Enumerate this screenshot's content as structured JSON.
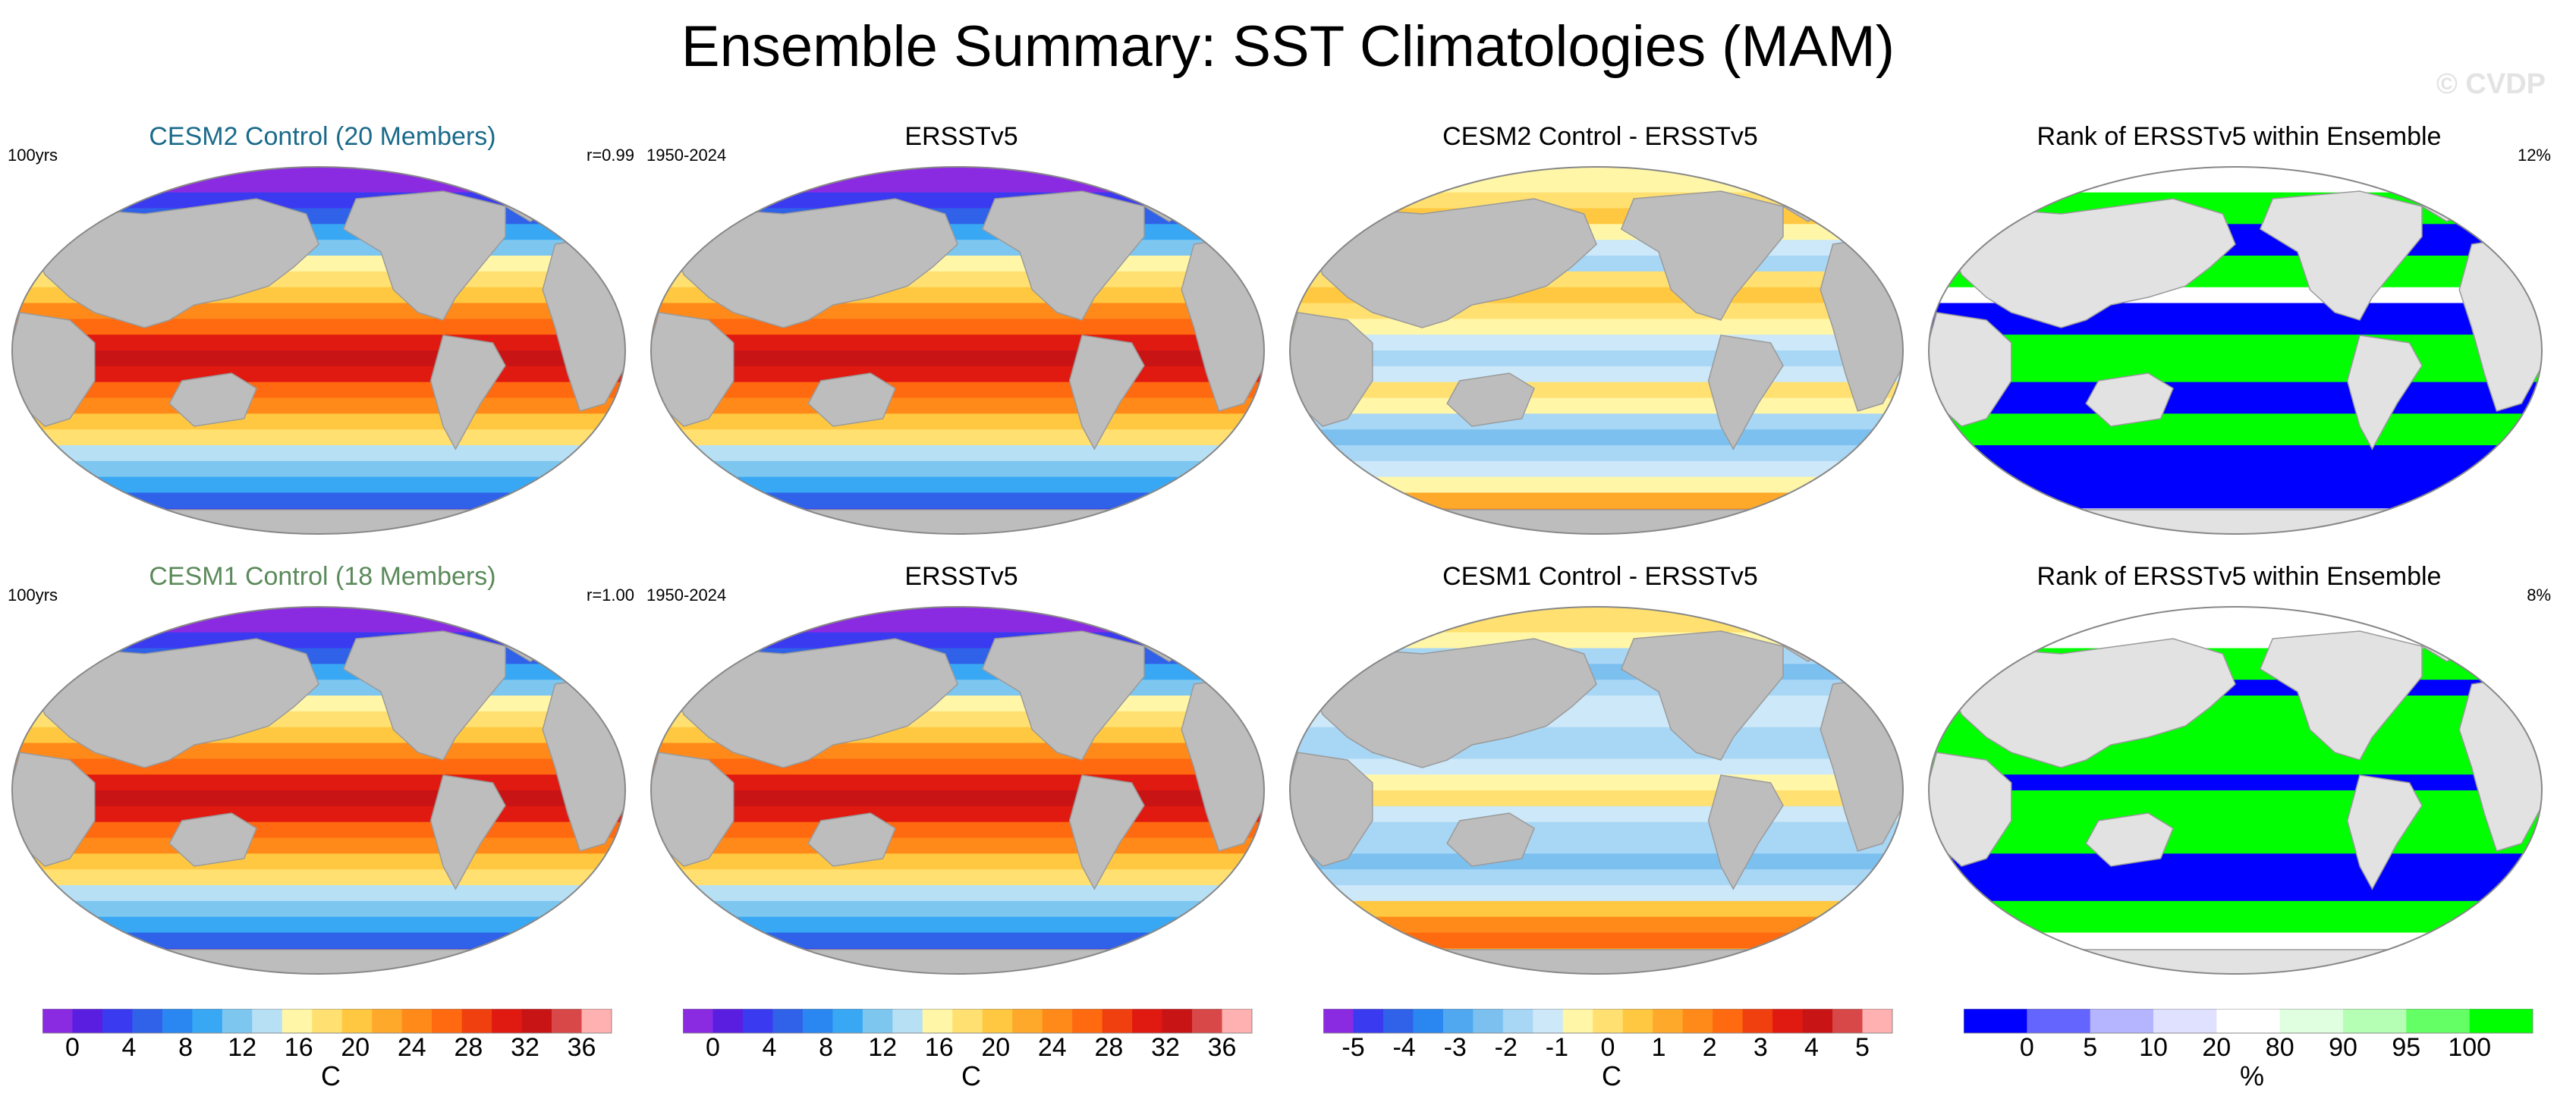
{
  "title": "Ensemble Summary: SST Climatologies (MAM)",
  "watermark": "© CVDP",
  "colors": {
    "land": "#bdbdbd",
    "land_rank": "#e2e2e2",
    "ocean_outline": "#888888",
    "title_cesm2": "#1a6a8a",
    "title_cesm1": "#5b8a5b"
  },
  "rows": [
    {
      "panels": [
        {
          "title": "CESM2 Control (20 Members)",
          "title_style": "cesm2",
          "left": "100yrs",
          "right": "r=0.99",
          "kind": "climo"
        },
        {
          "title": "ERSSTv5",
          "title_style": "plain",
          "left": "1950-2024",
          "right": "",
          "kind": "climo"
        },
        {
          "title": "CESM2 Control - ERSSTv5",
          "title_style": "plain",
          "left": "",
          "right": "",
          "kind": "diff2"
        },
        {
          "title": "Rank of ERSSTv5 within Ensemble",
          "title_style": "plain",
          "left": "",
          "right": "12%",
          "kind": "rank2"
        }
      ]
    },
    {
      "panels": [
        {
          "title": "CESM1 Control (18 Members)",
          "title_style": "cesm1",
          "left": "100yrs",
          "right": "r=1.00",
          "kind": "climo"
        },
        {
          "title": "ERSSTv5",
          "title_style": "plain",
          "left": "1950-2024",
          "right": "",
          "kind": "climo"
        },
        {
          "title": "CESM1 Control - ERSSTv5",
          "title_style": "plain",
          "left": "",
          "right": "",
          "kind": "diff1"
        },
        {
          "title": "Rank of ERSSTv5 within Ensemble",
          "title_style": "plain",
          "left": "",
          "right": "8%",
          "kind": "rank1"
        }
      ]
    }
  ],
  "colorbars": [
    {
      "unit": "C",
      "labels": [
        "0",
        "4",
        "8",
        "12",
        "16",
        "20",
        "24",
        "28",
        "32",
        "36"
      ],
      "colors": [
        "#8a2be2",
        "#5a1ee0",
        "#3a3af0",
        "#2f62e8",
        "#2a86f0",
        "#38a8f5",
        "#7cc6f0",
        "#b8e0f5",
        "#fff6a8",
        "#ffe070",
        "#ffc840",
        "#ffa92a",
        "#ff8a1a",
        "#ff6a10",
        "#f04010",
        "#e01a10",
        "#c81414",
        "#d84848",
        "#ffb0b0"
      ]
    },
    {
      "unit": "C",
      "labels": [
        "0",
        "4",
        "8",
        "12",
        "16",
        "20",
        "24",
        "28",
        "32",
        "36"
      ],
      "colors": [
        "#8a2be2",
        "#5a1ee0",
        "#3a3af0",
        "#2f62e8",
        "#2a86f0",
        "#38a8f5",
        "#7cc6f0",
        "#b8e0f5",
        "#fff6a8",
        "#ffe070",
        "#ffc840",
        "#ffa92a",
        "#ff8a1a",
        "#ff6a10",
        "#f04010",
        "#e01a10",
        "#c81414",
        "#d84848",
        "#ffb0b0"
      ]
    },
    {
      "unit": "C",
      "labels": [
        "-5",
        "-4",
        "-3",
        "-2",
        "-1",
        "0",
        "1",
        "2",
        "3",
        "4",
        "5"
      ],
      "colors": [
        "#8a2be2",
        "#3a3af0",
        "#2f62e8",
        "#2a86f0",
        "#4fa8f0",
        "#7cc0f0",
        "#a8d6f5",
        "#cde8f8",
        "#fff6a8",
        "#ffe070",
        "#ffc840",
        "#ffa92a",
        "#ff8a1a",
        "#ff6a10",
        "#f04010",
        "#e01a10",
        "#c81414",
        "#d84848",
        "#ffb0b0"
      ]
    },
    {
      "unit": "%",
      "labels": [
        "0",
        "5",
        "10",
        "20",
        "80",
        "90",
        "95",
        "100"
      ],
      "colors": [
        "#0000ff",
        "#6464ff",
        "#b4b4ff",
        "#e0e0ff",
        "#ffffff",
        "#e0ffe0",
        "#b4ffb4",
        "#64ff64",
        "#00ff00"
      ]
    }
  ]
}
